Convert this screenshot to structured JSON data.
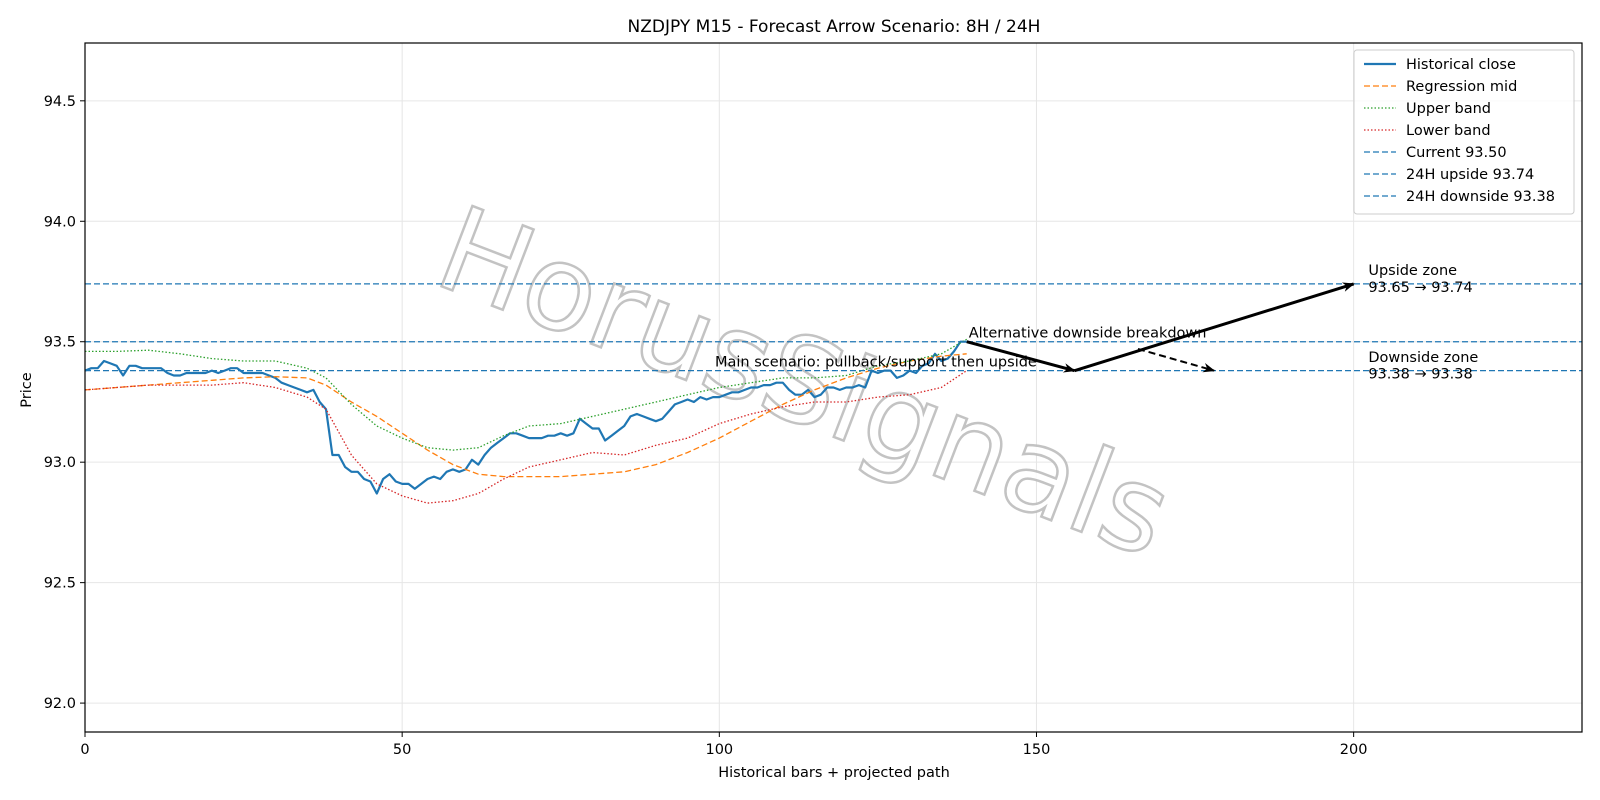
{
  "chart_data": {
    "type": "line",
    "title": "NZDJPY M15 - Forecast Arrow Scenario: 8H / 24H",
    "xlabel": "Historical bars + projected path",
    "ylabel": "Price",
    "xlim": [
      0,
      236
    ],
    "ylim": [
      91.88,
      94.74
    ],
    "x_ticks": [
      0,
      50,
      100,
      150,
      200
    ],
    "y_ticks": [
      92.0,
      92.5,
      93.0,
      93.5,
      94.0,
      94.5
    ],
    "x_tick_labels": [
      "0",
      "50",
      "100",
      "150",
      "200"
    ],
    "y_tick_labels": [
      "92.0",
      "92.5",
      "93.0",
      "93.5",
      "94.0",
      "94.5"
    ],
    "grid": true,
    "legend_position": "top-right",
    "watermark": "HorusSignals",
    "colors": {
      "historical": "#1f77b4",
      "regression": "#ff7f0e",
      "upper": "#2ca02c",
      "lower": "#d62728",
      "hlines": "#1f77b4",
      "arrows": "#000000"
    },
    "series": [
      {
        "name": "Historical close",
        "style": "solid",
        "points": [
          [
            0,
            93.38
          ],
          [
            1,
            93.39
          ],
          [
            2,
            93.39
          ],
          [
            3,
            93.42
          ],
          [
            4,
            93.41
          ],
          [
            5,
            93.4
          ],
          [
            6,
            93.36
          ],
          [
            7,
            93.4
          ],
          [
            8,
            93.4
          ],
          [
            9,
            93.39
          ],
          [
            10,
            93.39
          ],
          [
            11,
            93.39
          ],
          [
            12,
            93.39
          ],
          [
            13,
            93.37
          ],
          [
            14,
            93.36
          ],
          [
            15,
            93.36
          ],
          [
            16,
            93.37
          ],
          [
            17,
            93.37
          ],
          [
            18,
            93.37
          ],
          [
            19,
            93.37
          ],
          [
            20,
            93.38
          ],
          [
            21,
            93.37
          ],
          [
            22,
            93.38
          ],
          [
            23,
            93.39
          ],
          [
            24,
            93.39
          ],
          [
            25,
            93.37
          ],
          [
            26,
            93.37
          ],
          [
            27,
            93.37
          ],
          [
            28,
            93.37
          ],
          [
            29,
            93.36
          ],
          [
            30,
            93.35
          ],
          [
            31,
            93.33
          ],
          [
            32,
            93.32
          ],
          [
            33,
            93.31
          ],
          [
            34,
            93.3
          ],
          [
            35,
            93.29
          ],
          [
            36,
            93.3
          ],
          [
            37,
            93.25
          ],
          [
            38,
            93.22
          ],
          [
            39,
            93.03
          ],
          [
            40,
            93.03
          ],
          [
            41,
            92.98
          ],
          [
            42,
            92.96
          ],
          [
            43,
            92.96
          ],
          [
            44,
            92.93
          ],
          [
            45,
            92.92
          ],
          [
            46,
            92.87
          ],
          [
            47,
            92.93
          ],
          [
            48,
            92.95
          ],
          [
            49,
            92.92
          ],
          [
            50,
            92.91
          ],
          [
            51,
            92.91
          ],
          [
            52,
            92.89
          ],
          [
            53,
            92.91
          ],
          [
            54,
            92.93
          ],
          [
            55,
            92.94
          ],
          [
            56,
            92.93
          ],
          [
            57,
            92.96
          ],
          [
            58,
            92.97
          ],
          [
            59,
            92.96
          ],
          [
            60,
            92.97
          ],
          [
            61,
            93.01
          ],
          [
            62,
            92.99
          ],
          [
            63,
            93.03
          ],
          [
            64,
            93.06
          ],
          [
            65,
            93.08
          ],
          [
            66,
            93.1
          ],
          [
            67,
            93.12
          ],
          [
            68,
            93.12
          ],
          [
            69,
            93.11
          ],
          [
            70,
            93.1
          ],
          [
            71,
            93.1
          ],
          [
            72,
            93.1
          ],
          [
            73,
            93.11
          ],
          [
            74,
            93.11
          ],
          [
            75,
            93.12
          ],
          [
            76,
            93.11
          ],
          [
            77,
            93.12
          ],
          [
            78,
            93.18
          ],
          [
            79,
            93.16
          ],
          [
            80,
            93.14
          ],
          [
            81,
            93.14
          ],
          [
            82,
            93.09
          ],
          [
            83,
            93.11
          ],
          [
            84,
            93.13
          ],
          [
            85,
            93.15
          ],
          [
            86,
            93.19
          ],
          [
            87,
            93.2
          ],
          [
            88,
            93.19
          ],
          [
            89,
            93.18
          ],
          [
            90,
            93.17
          ],
          [
            91,
            93.18
          ],
          [
            92,
            93.21
          ],
          [
            93,
            93.24
          ],
          [
            94,
            93.25
          ],
          [
            95,
            93.26
          ],
          [
            96,
            93.25
          ],
          [
            97,
            93.27
          ],
          [
            98,
            93.26
          ],
          [
            99,
            93.27
          ],
          [
            100,
            93.27
          ],
          [
            101,
            93.28
          ],
          [
            102,
            93.29
          ],
          [
            103,
            93.29
          ],
          [
            104,
            93.3
          ],
          [
            105,
            93.31
          ],
          [
            106,
            93.31
          ],
          [
            107,
            93.32
          ],
          [
            108,
            93.32
          ],
          [
            109,
            93.33
          ],
          [
            110,
            93.33
          ],
          [
            111,
            93.3
          ],
          [
            112,
            93.28
          ],
          [
            113,
            93.28
          ],
          [
            114,
            93.3
          ],
          [
            115,
            93.27
          ],
          [
            116,
            93.28
          ],
          [
            117,
            93.31
          ],
          [
            118,
            93.31
          ],
          [
            119,
            93.3
          ],
          [
            120,
            93.31
          ],
          [
            121,
            93.31
          ],
          [
            122,
            93.32
          ],
          [
            123,
            93.31
          ],
          [
            124,
            93.38
          ],
          [
            125,
            93.37
          ],
          [
            126,
            93.38
          ],
          [
            127,
            93.38
          ],
          [
            128,
            93.35
          ],
          [
            129,
            93.36
          ],
          [
            130,
            93.38
          ],
          [
            131,
            93.37
          ],
          [
            132,
            93.4
          ],
          [
            133,
            93.41
          ],
          [
            134,
            93.45
          ],
          [
            135,
            93.42
          ],
          [
            136,
            93.43
          ],
          [
            137,
            93.46
          ],
          [
            138,
            93.5
          ],
          [
            139,
            93.5
          ]
        ]
      },
      {
        "name": "Regression mid",
        "style": "dashed",
        "points": [
          [
            0,
            93.3
          ],
          [
            5,
            93.31
          ],
          [
            10,
            93.32
          ],
          [
            15,
            93.33
          ],
          [
            20,
            93.34
          ],
          [
            25,
            93.35
          ],
          [
            30,
            93.355
          ],
          [
            35,
            93.35
          ],
          [
            38,
            93.32
          ],
          [
            42,
            93.25
          ],
          [
            46,
            93.19
          ],
          [
            50,
            93.12
          ],
          [
            54,
            93.05
          ],
          [
            58,
            92.99
          ],
          [
            62,
            92.95
          ],
          [
            66,
            92.94
          ],
          [
            70,
            92.94
          ],
          [
            75,
            92.94
          ],
          [
            80,
            92.95
          ],
          [
            85,
            92.96
          ],
          [
            90,
            92.99
          ],
          [
            95,
            93.04
          ],
          [
            100,
            93.1
          ],
          [
            105,
            93.17
          ],
          [
            110,
            93.24
          ],
          [
            115,
            93.3
          ],
          [
            120,
            93.35
          ],
          [
            125,
            93.39
          ],
          [
            130,
            93.42
          ],
          [
            135,
            93.44
          ],
          [
            139,
            93.45
          ]
        ]
      },
      {
        "name": "Upper band",
        "style": "dotted",
        "points": [
          [
            0,
            93.46
          ],
          [
            5,
            93.46
          ],
          [
            10,
            93.465
          ],
          [
            15,
            93.45
          ],
          [
            20,
            93.43
          ],
          [
            25,
            93.42
          ],
          [
            30,
            93.42
          ],
          [
            35,
            93.39
          ],
          [
            38,
            93.35
          ],
          [
            42,
            93.24
          ],
          [
            46,
            93.15
          ],
          [
            50,
            93.1
          ],
          [
            54,
            93.06
          ],
          [
            58,
            93.05
          ],
          [
            62,
            93.06
          ],
          [
            66,
            93.11
          ],
          [
            70,
            93.15
          ],
          [
            75,
            93.16
          ],
          [
            80,
            93.19
          ],
          [
            85,
            93.22
          ],
          [
            90,
            93.25
          ],
          [
            95,
            93.28
          ],
          [
            100,
            93.31
          ],
          [
            105,
            93.33
          ],
          [
            110,
            93.35
          ],
          [
            115,
            93.35
          ],
          [
            120,
            93.36
          ],
          [
            125,
            93.4
          ],
          [
            130,
            93.42
          ],
          [
            135,
            93.45
          ],
          [
            139,
            93.51
          ]
        ]
      },
      {
        "name": "Lower band",
        "style": "dotted",
        "points": [
          [
            0,
            93.3
          ],
          [
            5,
            93.31
          ],
          [
            10,
            93.32
          ],
          [
            15,
            93.32
          ],
          [
            20,
            93.32
          ],
          [
            25,
            93.33
          ],
          [
            30,
            93.31
          ],
          [
            35,
            93.27
          ],
          [
            38,
            93.22
          ],
          [
            42,
            93.03
          ],
          [
            46,
            92.91
          ],
          [
            50,
            92.86
          ],
          [
            54,
            92.83
          ],
          [
            58,
            92.84
          ],
          [
            62,
            92.87
          ],
          [
            66,
            92.93
          ],
          [
            70,
            92.98
          ],
          [
            75,
            93.01
          ],
          [
            80,
            93.04
          ],
          [
            85,
            93.03
          ],
          [
            90,
            93.07
          ],
          [
            95,
            93.1
          ],
          [
            100,
            93.16
          ],
          [
            105,
            93.2
          ],
          [
            110,
            93.23
          ],
          [
            115,
            93.25
          ],
          [
            120,
            93.25
          ],
          [
            125,
            93.27
          ],
          [
            130,
            93.28
          ],
          [
            135,
            93.31
          ],
          [
            139,
            93.38
          ]
        ]
      }
    ],
    "hlines": [
      {
        "name": "Current 93.50",
        "y": 93.5
      },
      {
        "name": "24H upside 93.74",
        "y": 93.74
      },
      {
        "name": "24H downside 93.38",
        "y": 93.38
      }
    ],
    "arrows": [
      {
        "name": "main-first-leg",
        "from": [
          139,
          93.5
        ],
        "to": [
          156,
          93.38
        ],
        "style": "solid"
      },
      {
        "name": "main-upside-leg",
        "from": [
          156,
          93.38
        ],
        "to": [
          200,
          93.74
        ],
        "style": "solid"
      },
      {
        "name": "alternative-downside",
        "from": [
          166,
          93.47
        ],
        "to": [
          178,
          93.38
        ],
        "style": "dashed"
      }
    ],
    "annotations": [
      {
        "name": "alternative-label",
        "text": "Alternative downside breakdown",
        "x": 139,
        "y": 93.5,
        "anchor": "start"
      },
      {
        "name": "main-scenario-label",
        "text": "Main scenario: pullback/support then upside",
        "x": 99,
        "y": 93.38,
        "anchor": "start"
      },
      {
        "name": "upside-zone-title",
        "text": "Upside zone",
        "x": 202,
        "y": 93.76,
        "anchor": "start"
      },
      {
        "name": "upside-zone-values",
        "text": "93.65 → 93.74",
        "x": 202,
        "y": 93.69,
        "anchor": "start"
      },
      {
        "name": "downside-zone-title",
        "text": "Downside zone",
        "x": 202,
        "y": 93.4,
        "anchor": "start"
      },
      {
        "name": "downside-zone-values",
        "text": "93.38 → 93.38",
        "x": 202,
        "y": 93.33,
        "anchor": "start"
      }
    ]
  }
}
